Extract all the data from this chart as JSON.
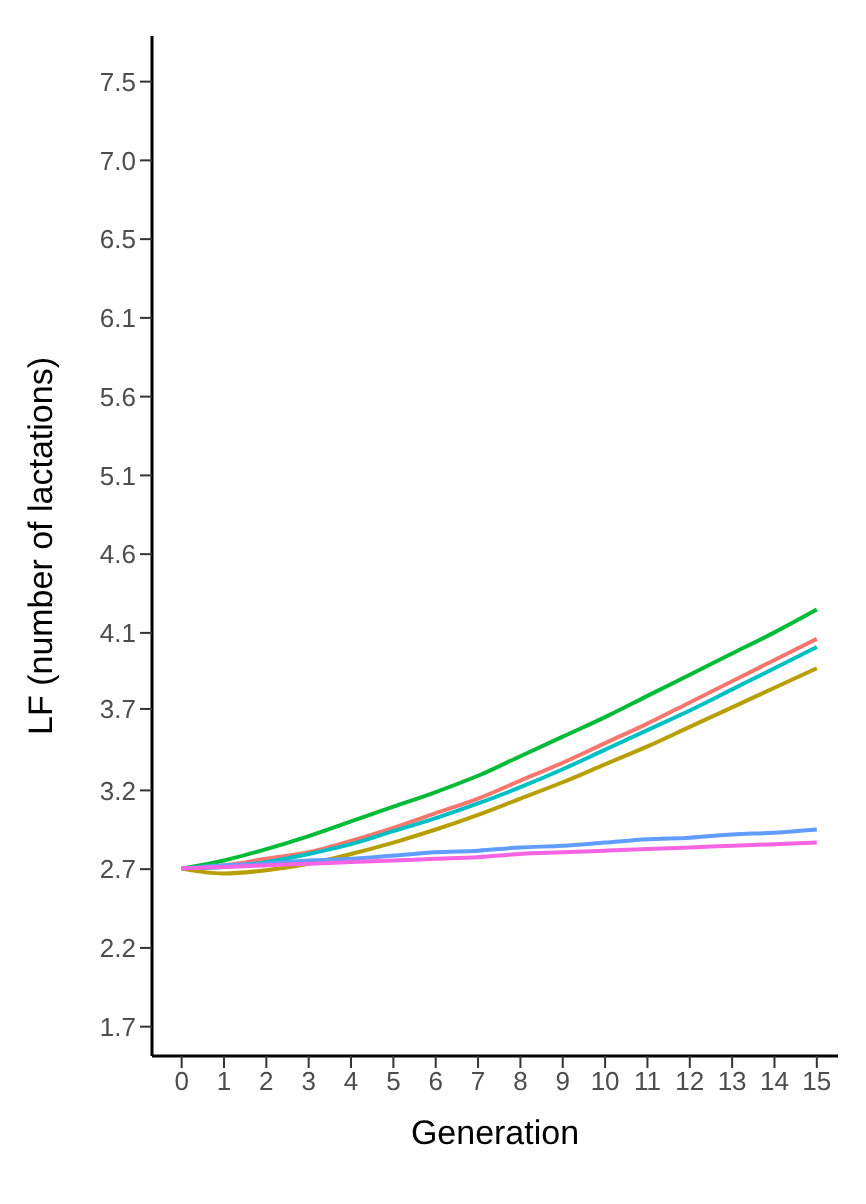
{
  "chart_data": {
    "type": "line",
    "xlabel": "Generation",
    "ylabel": "LF (number of lactations)",
    "x": [
      0,
      1,
      2,
      3,
      4,
      5,
      6,
      7,
      8,
      9,
      10,
      11,
      12,
      13,
      14,
      15
    ],
    "series": [
      {
        "color": "#00ba38",
        "values": [
          2.67,
          2.72,
          2.79,
          2.87,
          2.96,
          3.05,
          3.14,
          3.24,
          3.36,
          3.48,
          3.6,
          3.73,
          3.86,
          3.99,
          4.12,
          4.26
        ]
      },
      {
        "color": "#f8766d",
        "values": [
          2.67,
          2.69,
          2.73,
          2.77,
          2.84,
          2.92,
          3.01,
          3.1,
          3.21,
          3.32,
          3.44,
          3.56,
          3.69,
          3.82,
          3.95,
          4.08
        ]
      },
      {
        "color": "#00bfc4",
        "values": [
          2.67,
          2.68,
          2.71,
          2.76,
          2.82,
          2.9,
          2.98,
          3.07,
          3.17,
          3.28,
          3.4,
          3.52,
          3.64,
          3.77,
          3.9,
          4.03
        ]
      },
      {
        "color": "#b79f00",
        "values": [
          2.67,
          2.64,
          2.66,
          2.7,
          2.76,
          2.83,
          2.91,
          3.0,
          3.1,
          3.2,
          3.31,
          3.42,
          3.54,
          3.66,
          3.78,
          3.9
        ]
      },
      {
        "color": "#619cff",
        "values": [
          2.67,
          2.69,
          2.7,
          2.72,
          2.73,
          2.75,
          2.77,
          2.78,
          2.8,
          2.81,
          2.83,
          2.85,
          2.86,
          2.88,
          2.89,
          2.91
        ]
      },
      {
        "color": "#f564e3",
        "values": [
          2.67,
          2.68,
          2.69,
          2.7,
          2.71,
          2.72,
          2.73,
          2.74,
          2.76,
          2.77,
          2.78,
          2.79,
          2.8,
          2.81,
          2.82,
          2.83
        ]
      }
    ],
    "xlim": [
      -0.7,
      15.5
    ],
    "xticks": [
      0,
      1,
      2,
      3,
      4,
      5,
      6,
      7,
      8,
      9,
      10,
      11,
      12,
      13,
      14,
      15
    ],
    "ylim": [
      1.52,
      7.78
    ],
    "yticks": [
      {
        "value": 1.7,
        "label": "1.7"
      },
      {
        "value": 2.1833,
        "label": "2.2"
      },
      {
        "value": 2.6667,
        "label": "2.7"
      },
      {
        "value": 3.15,
        "label": "3.2"
      },
      {
        "value": 3.65,
        "label": "3.7"
      },
      {
        "value": 4.1167,
        "label": "4.1"
      },
      {
        "value": 4.6,
        "label": "4.6"
      },
      {
        "value": 5.0833,
        "label": "5.1"
      },
      {
        "value": 5.5667,
        "label": "5.6"
      },
      {
        "value": 6.05,
        "label": "6.1"
      },
      {
        "value": 6.5333,
        "label": "6.5"
      },
      {
        "value": 7.0167,
        "label": "7.0"
      },
      {
        "value": 7.5,
        "label": "7.5"
      }
    ],
    "grid": false,
    "legend": false,
    "marker": "none",
    "line_style": "solid"
  }
}
